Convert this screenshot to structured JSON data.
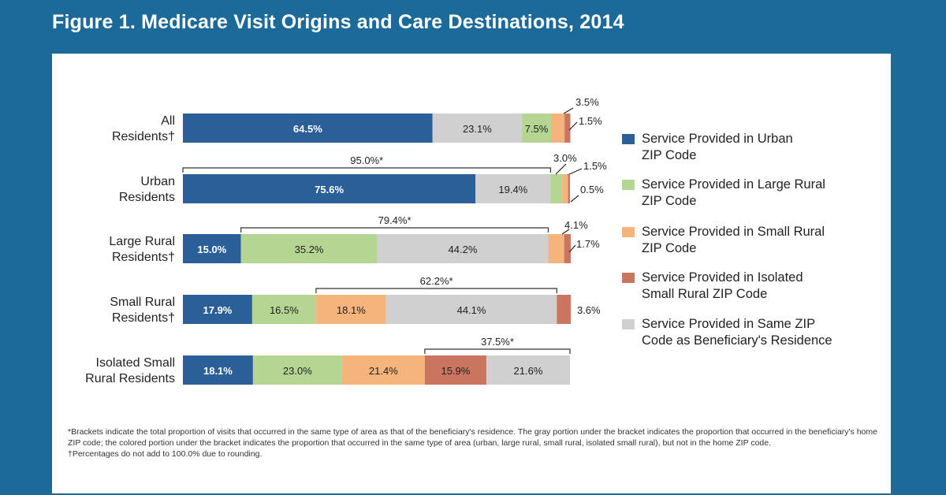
{
  "title": "Figure 1. Medicare Visit Origins and Care Destinations, 2014",
  "colors": {
    "urban": "#2b5f97",
    "large_rural": "#b5d592",
    "small_rural": "#f4b47c",
    "isolated": "#c97560",
    "same_zip": "#d0d0d0"
  },
  "chart_data": {
    "type": "bar",
    "orientation": "horizontal-stacked",
    "categories": [
      "All Residents†",
      "Urban Residents",
      "Large Rural Residents†",
      "Small Rural Residents†",
      "Isolated Small Rural Residents"
    ],
    "rows": [
      {
        "label_lines": [
          "All",
          "Residents†"
        ],
        "segments": [
          {
            "series": "urban",
            "value": 64.5,
            "label": "64.5%"
          },
          {
            "series": "same_zip",
            "value": 23.1,
            "label": "23.1%"
          },
          {
            "series": "large_rural",
            "value": 7.5,
            "label": "7.5%"
          },
          {
            "series": "small_rural",
            "value": 3.5,
            "label": "3.5%"
          },
          {
            "series": "isolated",
            "value": 1.5,
            "label": "1.5%"
          }
        ]
      },
      {
        "label_lines": [
          "Urban",
          "Residents"
        ],
        "bracket": {
          "value": 95.0,
          "label": "95.0%*"
        },
        "segments": [
          {
            "series": "urban",
            "value": 75.6,
            "label": "75.6%"
          },
          {
            "series": "same_zip",
            "value": 19.4,
            "label": "19.4%"
          },
          {
            "series": "large_rural",
            "value": 3.0,
            "label": "3.0%"
          },
          {
            "series": "small_rural",
            "value": 1.5,
            "label": "1.5%"
          },
          {
            "series": "isolated",
            "value": 0.5,
            "label": "0.5%"
          }
        ]
      },
      {
        "label_lines": [
          "Large Rural",
          "Residents†"
        ],
        "bracket": {
          "value": 79.4,
          "label": "79.4%*"
        },
        "segments": [
          {
            "series": "urban",
            "value": 15.0,
            "label": "15.0%"
          },
          {
            "series": "large_rural",
            "value": 35.2,
            "label": "35.2%"
          },
          {
            "series": "same_zip",
            "value": 44.2,
            "label": "44.2%"
          },
          {
            "series": "small_rural",
            "value": 4.1,
            "label": "4.1%"
          },
          {
            "series": "isolated",
            "value": 1.7,
            "label": "1.7%"
          }
        ]
      },
      {
        "label_lines": [
          "Small Rural",
          "Residents†"
        ],
        "bracket": {
          "value": 62.2,
          "label": "62.2%*"
        },
        "segments": [
          {
            "series": "urban",
            "value": 17.9,
            "label": "17.9%"
          },
          {
            "series": "large_rural",
            "value": 16.5,
            "label": "16.5%"
          },
          {
            "series": "small_rural",
            "value": 18.1,
            "label": "18.1%"
          },
          {
            "series": "same_zip",
            "value": 44.1,
            "label": "44.1%"
          },
          {
            "series": "isolated",
            "value": 3.6,
            "label": "3.6%"
          }
        ]
      },
      {
        "label_lines": [
          "Isolated Small",
          "Rural Residents"
        ],
        "bracket": {
          "value": 37.5,
          "label": "37.5%*"
        },
        "segments": [
          {
            "series": "urban",
            "value": 18.1,
            "label": "18.1%"
          },
          {
            "series": "large_rural",
            "value": 23.0,
            "label": "23.0%"
          },
          {
            "series": "small_rural",
            "value": 21.4,
            "label": "21.4%"
          },
          {
            "series": "isolated",
            "value": 15.9,
            "label": "15.9%"
          },
          {
            "series": "same_zip",
            "value": 21.6,
            "label": "21.6%"
          }
        ]
      }
    ],
    "xlim": [
      0,
      100
    ],
    "legend_position": "right",
    "legend": [
      {
        "series": "urban",
        "lines": [
          "Service Provided in Urban",
          "ZIP Code"
        ]
      },
      {
        "series": "large_rural",
        "lines": [
          "Service Provided in Large Rural",
          "ZIP Code"
        ]
      },
      {
        "series": "small_rural",
        "lines": [
          "Service Provided in Small Rural",
          "ZIP Code"
        ]
      },
      {
        "series": "isolated",
        "lines": [
          "Service Provided in Isolated",
          "Small Rural ZIP Code"
        ]
      },
      {
        "series": "same_zip",
        "lines": [
          "Service Provided in Same ZIP",
          "Code as Beneficiary's Residence"
        ]
      }
    ]
  },
  "notes": [
    "*Brackets indicate the total proportion of visits that occurred in the same type of area as that of the beneficiary's residence. The gray portion under the bracket indicates the proportion that occurred in the beneficiary's home ZIP code; the colored portion under the bracket indicates the proportion that occurred in the same type of area (urban, large rural, small rural, isolated small rural), but not in the home ZIP code.",
    "†Percentages do not add to 100.0% due to rounding."
  ]
}
